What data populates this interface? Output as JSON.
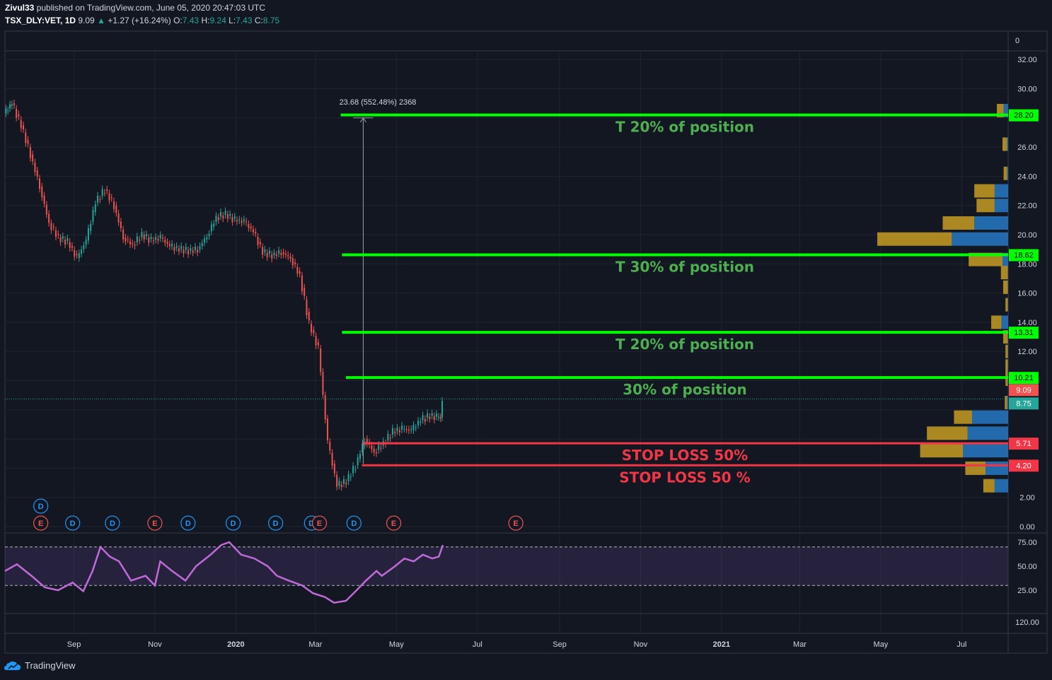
{
  "header": {
    "publisher": "Zivul33",
    "published_text": "published on TradingView.com, June 05, 2020 20:47:03 UTC",
    "symbol": "TSX_DLY:VET, 1D",
    "last": "9.09",
    "change_arrow": "▲",
    "change": "+1.27 (+16.24%)",
    "open_label": "O:",
    "open": "7.43",
    "high_label": "H:",
    "high": "9.24",
    "low_label": "L:",
    "low": "7.43",
    "close_label": "C:",
    "close": "8.75"
  },
  "footer": {
    "brand": "TradingView",
    "logo_icon": "tradingview-cloud-logo-icon"
  },
  "colors": {
    "background": "#131722",
    "up": "#26a69a",
    "down": "#ef5350",
    "target_line": "#00ff00",
    "stop_line": "#f23645",
    "rsi": "#c06ad8",
    "vp_up": "#2679c4",
    "vp_down": "#c79c22"
  },
  "measure_label": "23.68 (552.48%) 2368",
  "annotations": [
    {
      "text": "T 20% of position",
      "price": 28.2,
      "color": "#4caf50"
    },
    {
      "text": "T 30% of position",
      "price": 18.62,
      "color": "#4caf50"
    },
    {
      "text": "T 20% of position",
      "price": 13.31,
      "color": "#4caf50"
    },
    {
      "text": "30% of position",
      "price": 10.21,
      "color": "#4caf50"
    },
    {
      "text": "STOP LOSS 50%",
      "price": 5.71,
      "color": "#f23645"
    },
    {
      "text": "STOP LOSS 50 %",
      "price": 4.2,
      "color": "#f23645"
    }
  ],
  "price_tags": [
    {
      "label": "28.20",
      "price": 28.2,
      "bg": "#00ff00",
      "fg": "#000000"
    },
    {
      "label": "18.62",
      "price": 18.62,
      "bg": "#00ff00",
      "fg": "#000000"
    },
    {
      "label": "13.31",
      "price": 13.31,
      "bg": "#00ff00",
      "fg": "#000000"
    },
    {
      "label": "10.21",
      "price": 10.21,
      "bg": "#00ff00",
      "fg": "#000000"
    },
    {
      "label": "9.09",
      "price": 9.09,
      "bg": "#ef5350",
      "fg": "#ffffff"
    },
    {
      "label": "8.75",
      "price": 8.75,
      "bg": "#26a69a",
      "fg": "#ffffff"
    },
    {
      "label": "5.71",
      "price": 5.71,
      "bg": "#f23645",
      "fg": "#ffffff"
    },
    {
      "label": "4.20",
      "price": 4.2,
      "bg": "#f23645",
      "fg": "#ffffff"
    }
  ],
  "events": [
    {
      "label": "D",
      "color": "#2196f3",
      "date": "2019-08-07",
      "row": 1
    },
    {
      "label": "E",
      "color": "#ef5350",
      "date": "2019-08-07",
      "row": 2
    },
    {
      "label": "D",
      "color": "#2196f3",
      "date": "2019-08-31",
      "row": 2
    },
    {
      "label": "D",
      "color": "#2196f3",
      "date": "2019-09-30",
      "row": 2
    },
    {
      "label": "E",
      "color": "#ef5350",
      "date": "2019-11-01",
      "row": 2
    },
    {
      "label": "D",
      "color": "#2196f3",
      "date": "2019-11-26",
      "row": 2
    },
    {
      "label": "D",
      "color": "#2196f3",
      "date": "2019-12-30",
      "row": 2
    },
    {
      "label": "D",
      "color": "#2196f3",
      "date": "2020-01-31",
      "row": 2
    },
    {
      "label": "D",
      "color": "#2196f3",
      "date": "2020-02-27",
      "row": 2
    },
    {
      "label": "E",
      "color": "#ef5350",
      "date": "2020-03-04",
      "row": 2
    },
    {
      "label": "D",
      "color": "#2196f3",
      "date": "2020-03-30",
      "row": 2
    },
    {
      "label": "E",
      "color": "#ef5350",
      "date": "2020-04-29",
      "row": 2
    },
    {
      "label": "E",
      "color": "#ef5350",
      "date": "2020-07-30",
      "row": 2
    }
  ],
  "chart_data": {
    "type": "candlestick",
    "symbol": "TSX_DLY:VET",
    "interval": "1D",
    "x_axis": {
      "range": [
        "2019-07-11",
        "2021-08-05"
      ],
      "tick_labels": [
        "Sep",
        "Nov",
        "2020",
        "Mar",
        "May",
        "Jul",
        "Sep",
        "Nov",
        "2021",
        "Mar",
        "May",
        "Jul"
      ]
    },
    "y_axis": {
      "range": [
        0,
        34
      ],
      "tick_labels": [
        "0.00",
        "2.00",
        "4.00",
        "6.00",
        "8.00",
        "10.00",
        "12.00",
        "14.00",
        "16.00",
        "18.00",
        "20.00",
        "22.00",
        "24.00",
        "26.00",
        "28.00",
        "30.00",
        "32.00"
      ],
      "top_label": "0"
    },
    "price_path": [
      [
        "2019-07-11",
        28.3
      ],
      [
        "2019-07-17",
        29.0
      ],
      [
        "2019-07-24",
        27.5
      ],
      [
        "2019-07-31",
        25.5
      ],
      [
        "2019-08-07",
        23.3
      ],
      [
        "2019-08-14",
        20.8
      ],
      [
        "2019-08-21",
        19.8
      ],
      [
        "2019-08-28",
        19.5
      ],
      [
        "2019-09-04",
        18.4
      ],
      [
        "2019-09-11",
        19.6
      ],
      [
        "2019-09-18",
        22.2
      ],
      [
        "2019-09-25",
        23.1
      ],
      [
        "2019-10-02",
        22.0
      ],
      [
        "2019-10-09",
        19.8
      ],
      [
        "2019-10-16",
        19.3
      ],
      [
        "2019-10-23",
        20.0
      ],
      [
        "2019-10-30",
        19.6
      ],
      [
        "2019-11-06",
        19.8
      ],
      [
        "2019-11-13",
        19.2
      ],
      [
        "2019-11-20",
        19.0
      ],
      [
        "2019-11-27",
        18.9
      ],
      [
        "2019-12-04",
        19.0
      ],
      [
        "2019-12-11",
        19.9
      ],
      [
        "2019-12-18",
        21.2
      ],
      [
        "2019-12-25",
        21.4
      ],
      [
        "2020-01-01",
        21.0
      ],
      [
        "2020-01-08",
        20.9
      ],
      [
        "2020-01-15",
        20.2
      ],
      [
        "2020-01-22",
        18.8
      ],
      [
        "2020-01-29",
        18.6
      ],
      [
        "2020-02-05",
        18.8
      ],
      [
        "2020-02-12",
        18.4
      ],
      [
        "2020-02-19",
        17.2
      ],
      [
        "2020-02-26",
        13.9
      ],
      [
        "2020-03-04",
        12.2
      ],
      [
        "2020-03-11",
        5.8
      ],
      [
        "2020-03-18",
        2.8
      ],
      [
        "2020-03-25",
        3.1
      ],
      [
        "2020-04-01",
        4.2
      ],
      [
        "2020-04-08",
        6.0
      ],
      [
        "2020-04-15",
        5.1
      ],
      [
        "2020-04-22",
        5.7
      ],
      [
        "2020-04-29",
        6.5
      ],
      [
        "2020-05-06",
        6.7
      ],
      [
        "2020-05-13",
        6.6
      ],
      [
        "2020-05-20",
        7.3
      ],
      [
        "2020-05-27",
        7.6
      ],
      [
        "2020-06-01",
        7.5
      ],
      [
        "2020-06-04",
        7.48
      ],
      [
        "2020-06-05",
        8.75
      ]
    ],
    "current_price": 9.09,
    "measure": {
      "from_date": "2020-04-06",
      "from_price": 4.3,
      "to_price": 28.0,
      "label": "23.68 (552.48%) 2368"
    },
    "target_lines": [
      {
        "price": 28.2,
        "start": "2020-03-20"
      },
      {
        "price": 18.62,
        "start": "2020-03-21"
      },
      {
        "price": 13.31,
        "start": "2020-03-21"
      },
      {
        "price": 10.21,
        "start": "2020-03-24"
      }
    ],
    "stop_lines": [
      {
        "price": 5.71,
        "start": "2020-04-06"
      },
      {
        "price": 4.2,
        "start": "2020-04-05"
      }
    ],
    "volume_profile": [
      {
        "price": 28.5,
        "up": 0.2,
        "down": 0.3
      },
      {
        "price": 26.2,
        "up": 0.05,
        "down": 0.2
      },
      {
        "price": 24.2,
        "up": 0.05,
        "down": 0.15
      },
      {
        "price": 23.0,
        "up": 0.6,
        "down": 0.9
      },
      {
        "price": 22.0,
        "up": 0.6,
        "down": 0.8
      },
      {
        "price": 20.8,
        "up": 1.5,
        "down": 1.4
      },
      {
        "price": 19.7,
        "up": 2.5,
        "down": 3.3
      },
      {
        "price": 18.3,
        "up": 0.25,
        "down": 1.5
      },
      {
        "price": 17.4,
        "up": 0.02,
        "down": 0.3
      },
      {
        "price": 16.4,
        "up": 0.02,
        "down": 0.2
      },
      {
        "price": 15.2,
        "up": 0.02,
        "down": 0.1
      },
      {
        "price": 14.0,
        "up": 0.3,
        "down": 0.45
      },
      {
        "price": 13.0,
        "up": 0.02,
        "down": 0.2
      },
      {
        "price": 12.0,
        "up": 0.02,
        "down": 0.1
      },
      {
        "price": 11.0,
        "up": 0.02,
        "down": 0.1
      },
      {
        "price": 10.1,
        "up": 0.02,
        "down": 0.1
      },
      {
        "price": 8.5,
        "up": 0.05,
        "down": 0.1
      },
      {
        "price": 7.5,
        "up": 1.6,
        "down": 0.8
      },
      {
        "price": 6.4,
        "up": 1.8,
        "down": 1.8
      },
      {
        "price": 5.2,
        "up": 2.0,
        "down": 1.9
      },
      {
        "price": 4.0,
        "up": 1.0,
        "down": 0.9
      },
      {
        "price": 2.8,
        "up": 0.6,
        "down": 0.5
      }
    ],
    "rsi": {
      "levels": [
        70,
        30
      ],
      "y_range": [
        10,
        80
      ],
      "tick_labels": [
        "75.00",
        "50.00",
        "25.00"
      ],
      "extra_pane_label": "120.00",
      "path": [
        [
          "2019-07-11",
          45
        ],
        [
          "2019-07-20",
          52
        ],
        [
          "2019-07-31",
          40
        ],
        [
          "2019-08-10",
          28
        ],
        [
          "2019-08-20",
          25
        ],
        [
          "2019-08-31",
          33
        ],
        [
          "2019-09-08",
          24
        ],
        [
          "2019-09-15",
          45
        ],
        [
          "2019-09-21",
          70
        ],
        [
          "2019-09-28",
          60
        ],
        [
          "2019-10-05",
          55
        ],
        [
          "2019-10-14",
          35
        ],
        [
          "2019-10-25",
          40
        ],
        [
          "2019-11-01",
          30
        ],
        [
          "2019-11-05",
          55
        ],
        [
          "2019-11-14",
          45
        ],
        [
          "2019-11-24",
          35
        ],
        [
          "2019-12-02",
          50
        ],
        [
          "2019-12-13",
          62
        ],
        [
          "2019-12-21",
          72
        ],
        [
          "2019-12-27",
          75
        ],
        [
          "2020-01-05",
          62
        ],
        [
          "2020-01-15",
          58
        ],
        [
          "2020-01-25",
          50
        ],
        [
          "2020-02-01",
          40
        ],
        [
          "2020-02-10",
          35
        ],
        [
          "2020-02-20",
          30
        ],
        [
          "2020-02-28",
          22
        ],
        [
          "2020-03-08",
          18
        ],
        [
          "2020-03-15",
          12
        ],
        [
          "2020-03-24",
          14
        ],
        [
          "2020-04-01",
          25
        ],
        [
          "2020-04-08",
          35
        ],
        [
          "2020-04-16",
          45
        ],
        [
          "2020-04-20",
          40
        ],
        [
          "2020-04-30",
          50
        ],
        [
          "2020-05-07",
          58
        ],
        [
          "2020-05-14",
          55
        ],
        [
          "2020-05-21",
          62
        ],
        [
          "2020-05-28",
          58
        ],
        [
          "2020-06-02",
          60
        ],
        [
          "2020-06-05",
          72
        ]
      ]
    }
  }
}
